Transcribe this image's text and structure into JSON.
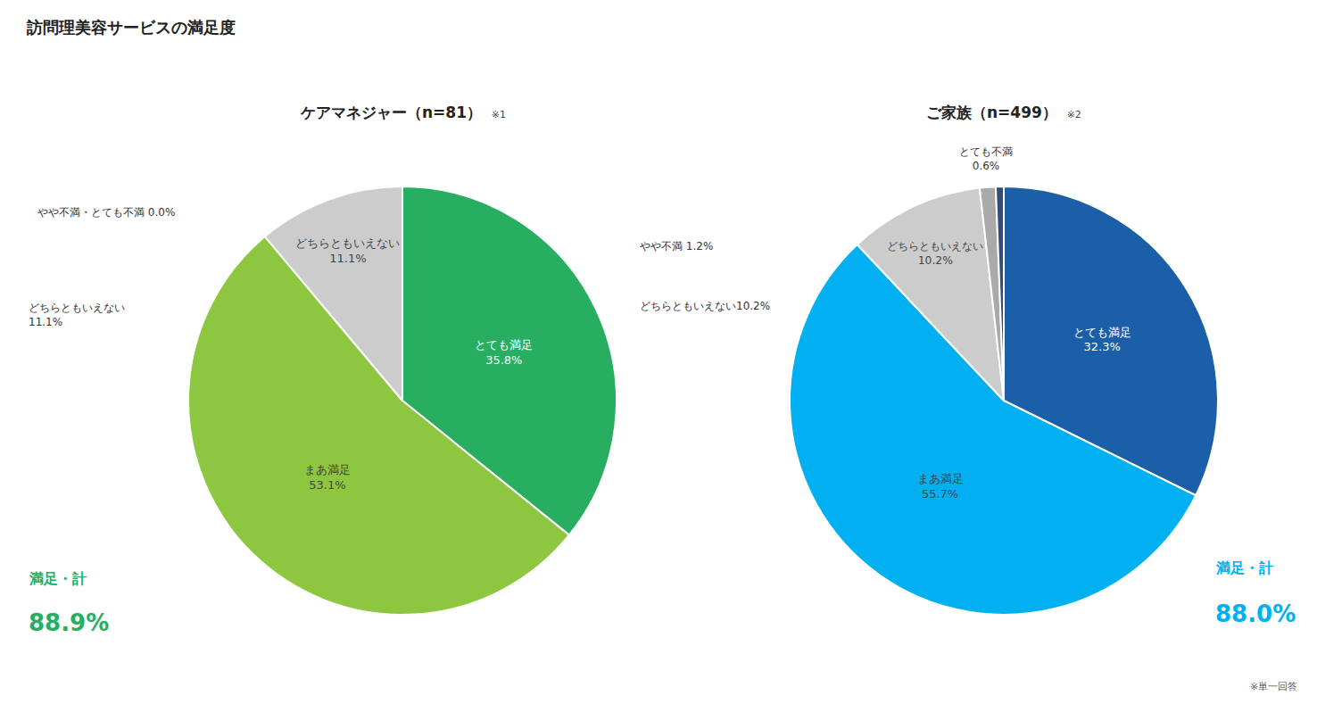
{
  "title": "訪問理美容サービスの満足度",
  "chart_data": [
    {
      "type": "pie",
      "title": "ケアマネジャー（n=81）",
      "subtitle": "※1",
      "categories": [
        "とても満足",
        "まあ満足",
        "どちらともいえない"
      ],
      "values": [
        35.8,
        53.1,
        11.1
      ],
      "value_labels": [
        "とても満足\n35.8%",
        "まあ満足\n53.1%",
        "どちらともいえない\n11.1%"
      ],
      "colors": [
        "#27ae60",
        "#8dc63f",
        "#cccccc"
      ],
      "data_labels": true,
      "color": "#27ae60",
      "annotations": [
        "やや不満・とても不満 0.0%",
        "どちらともいえない\n11.1%",
        "満足・計",
        "88.9%"
      ]
    },
    {
      "type": "pie",
      "title": "ご家族（n=499）",
      "subtitle": "※2",
      "categories": [
        "とても満足",
        "まあ満足",
        "どちらともいえない",
        "やや不満",
        "とても不満"
      ],
      "values": [
        32.3,
        55.7,
        10.2,
        1.2,
        0.6
      ],
      "value_labels": [
        "とても満足\n32.3%",
        "まあ満足\n55.7%",
        "どちらともいえない\n10.2%",
        null,
        null
      ],
      "colors": [
        "#1a5fa8",
        "#00b0f0",
        "#cccccc",
        "#aaaaaa",
        "#334d7a"
      ],
      "data_labels": true,
      "color": "#00b0f0",
      "annotations": [
        "とても不満\n0.6%",
        "やや不満 1.2%",
        "どちらともいえない10.2%",
        "満足・計",
        "88.0%",
        "※単一回答"
      ]
    }
  ]
}
